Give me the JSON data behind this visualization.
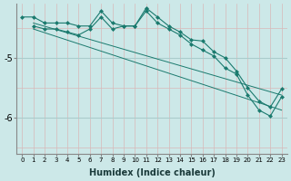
{
  "xlabel": "Humidex (Indice chaleur)",
  "bg_color": "#cce8e8",
  "line_color": "#1a7a6e",
  "xlim": [
    -0.5,
    23.5
  ],
  "ylim": [
    -6.6,
    -4.1
  ],
  "yticks": [
    -6,
    -5
  ],
  "xticks": [
    0,
    1,
    2,
    3,
    4,
    5,
    6,
    7,
    8,
    9,
    10,
    11,
    12,
    13,
    14,
    15,
    16,
    17,
    18,
    19,
    20,
    21,
    22,
    23
  ],
  "line1_x": [
    0,
    1,
    2,
    3,
    4,
    5,
    6,
    7,
    8,
    9,
    10,
    11,
    12,
    13,
    14,
    15,
    16,
    17,
    18,
    19,
    20,
    21,
    22,
    23
  ],
  "line1_y": [
    -4.32,
    -4.32,
    -4.42,
    -4.42,
    -4.42,
    -4.47,
    -4.47,
    -4.22,
    -4.42,
    -4.47,
    -4.47,
    -4.17,
    -4.32,
    -4.47,
    -4.57,
    -4.7,
    -4.72,
    -4.9,
    -5.0,
    -5.22,
    -5.5,
    -5.72,
    -5.82,
    -5.52
  ],
  "line2_x": [
    1,
    2,
    3,
    4,
    5,
    6,
    7,
    8,
    9,
    10,
    11,
    12,
    13,
    14,
    15,
    16,
    17,
    18,
    19,
    20,
    21,
    22,
    23
  ],
  "line2_y": [
    -4.47,
    -4.52,
    -4.52,
    -4.57,
    -4.62,
    -4.52,
    -4.32,
    -4.52,
    -4.47,
    -4.47,
    -4.22,
    -4.42,
    -4.52,
    -4.62,
    -4.77,
    -4.87,
    -4.97,
    -5.17,
    -5.27,
    -5.62,
    -5.87,
    -5.97,
    -5.65
  ],
  "line3_x": [
    1,
    23
  ],
  "line3_y": [
    -4.42,
    -5.62
  ],
  "line4_x": [
    1,
    23
  ],
  "line4_y": [
    -4.52,
    -5.87
  ]
}
